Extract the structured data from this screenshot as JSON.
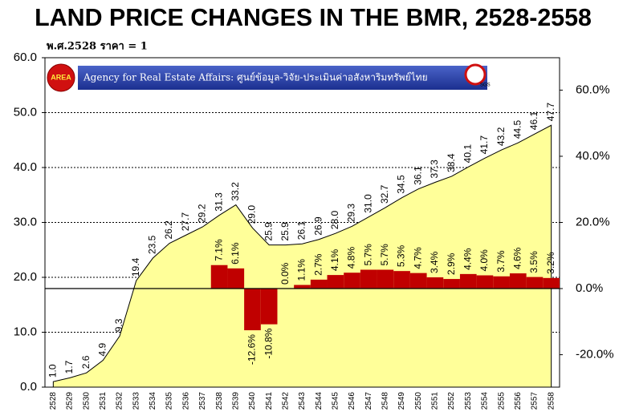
{
  "chart_data": {
    "type": "combo",
    "title": "LAND PRICE CHANGES IN THE BMR, 2528-2558",
    "subtitle": "พ.ศ.2528 ราคา = 1",
    "banner": {
      "logo": "AREA",
      "text": "Agency for Real Estate Affairs: ศูนย์ข้อมูล-วิจัย-ประเมินค่าอสังหาริมทรัพย์ไทย",
      "cert": "SGS"
    },
    "categories": [
      "2528",
      "2529",
      "2530",
      "2531",
      "2532",
      "2533",
      "2534",
      "2535",
      "2536",
      "2537",
      "2538",
      "2539",
      "2540",
      "2541",
      "2542",
      "2543",
      "2544",
      "2545",
      "2546",
      "2547",
      "2548",
      "2549",
      "2550",
      "2551",
      "2552",
      "2553",
      "2554",
      "2555",
      "2556",
      "2557",
      "2558"
    ],
    "series": [
      {
        "type": "area",
        "color": "#ffff99",
        "values": [
          1.0,
          1.7,
          2.6,
          4.9,
          9.3,
          19.4,
          23.5,
          26.2,
          27.7,
          29.2,
          31.3,
          33.2,
          29.0,
          25.9,
          25.9,
          26.1,
          26.9,
          28.0,
          29.3,
          31.0,
          32.7,
          34.5,
          36.1,
          37.3,
          38.4,
          40.1,
          41.7,
          43.2,
          44.5,
          46.1,
          47.7
        ],
        "value_labels": [
          "1.0",
          "1.7",
          "2.6",
          "4.9",
          "9.3",
          "19.4",
          "23.5",
          "26.2",
          "27.7",
          "29.2",
          "31.3",
          "33.2",
          "29.0",
          "25.9",
          "25.9",
          "26.1",
          "26.9",
          "28.0",
          "29.3",
          "31.0",
          "32.7",
          "34.5",
          "36.1",
          "37.3",
          "38.4",
          "40.1",
          "41.7",
          "43.2",
          "44.5",
          "46.1",
          "47.7"
        ]
      },
      {
        "type": "bar",
        "color": "#c00000",
        "axis": "y2",
        "values": [
          null,
          null,
          null,
          null,
          null,
          null,
          null,
          null,
          null,
          null,
          7.1,
          6.1,
          -12.6,
          -10.8,
          0.0,
          1.1,
          2.7,
          4.1,
          4.8,
          5.7,
          5.7,
          5.3,
          4.7,
          3.4,
          2.9,
          4.4,
          4.0,
          3.7,
          4.6,
          3.5,
          3.2
        ],
        "value_labels": [
          null,
          null,
          null,
          null,
          null,
          null,
          null,
          null,
          null,
          null,
          "7.1%",
          "6.1%",
          "-12.6%",
          "-10.8%",
          "0.0%",
          "1.1%",
          "2.7%",
          "4.1%",
          "4.8%",
          "5.7%",
          "5.7%",
          "5.3%",
          "4.7%",
          "3.4%",
          "2.9%",
          "4.4%",
          "4.0%",
          "3.7%",
          "4.6%",
          "3.5%",
          "3.2%"
        ]
      }
    ],
    "ylim": [
      0,
      60
    ],
    "yticks": [
      {
        "value": 0,
        "label": "0.0"
      },
      {
        "value": 10,
        "label": "10.0"
      },
      {
        "value": 20,
        "label": "20.0"
      },
      {
        "value": 30,
        "label": "30.0"
      },
      {
        "value": 40,
        "label": "40.0"
      },
      {
        "value": 50,
        "label": "50.0"
      },
      {
        "value": 60,
        "label": "60.0"
      }
    ],
    "y2lim": [
      -29.8,
      69.8
    ],
    "y2ticks": [
      {
        "value": -20,
        "label": "-20.0%"
      },
      {
        "value": 0,
        "label": "0.0%"
      },
      {
        "value": 20,
        "label": "20.0%"
      },
      {
        "value": 40,
        "label": "40.0%"
      },
      {
        "value": 60,
        "label": "60.0%"
      }
    ],
    "grid": true
  }
}
